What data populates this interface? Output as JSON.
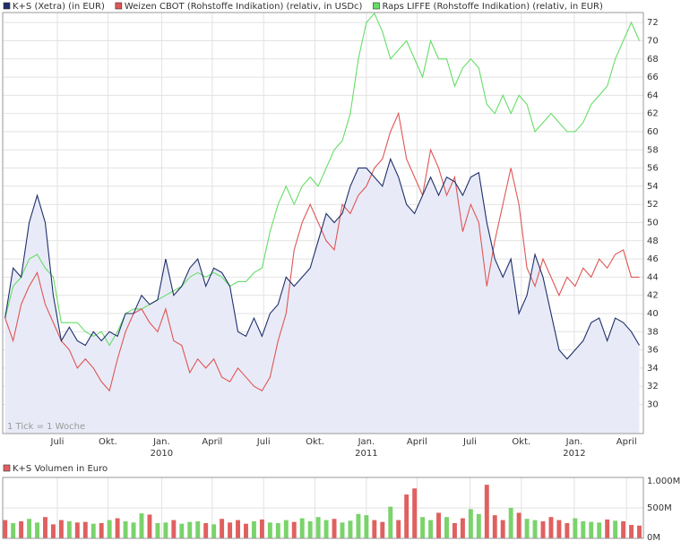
{
  "chart_data": [
    {
      "type": "line",
      "annotation": "1 Tick = 1 Woche",
      "xlim": [
        -0.3,
        79.5
      ],
      "xticks": [
        {
          "value": 6.5,
          "label": "Juli"
        },
        {
          "value": 12.8,
          "label": "Okt."
        },
        {
          "value": 19.5,
          "label": "Jan."
        },
        {
          "value": 25.8,
          "label": "April"
        },
        {
          "value": 32.2,
          "label": "Juli"
        },
        {
          "value": 38.6,
          "label": "Okt."
        },
        {
          "value": 45.0,
          "label": "Jan."
        },
        {
          "value": 51.3,
          "label": "April"
        },
        {
          "value": 57.9,
          "label": "Juli"
        },
        {
          "value": 64.3,
          "label": "Okt."
        },
        {
          "value": 70.9,
          "label": "Jan."
        },
        {
          "value": 77.4,
          "label": "April"
        }
      ],
      "year_labels": [
        {
          "value": 19.5,
          "label": "2010"
        },
        {
          "value": 45.0,
          "label": "2011"
        },
        {
          "value": 70.9,
          "label": "2012"
        }
      ],
      "ylim": [
        26.8,
        73.1
      ],
      "yticks": [
        30,
        32,
        34,
        36,
        38,
        40,
        42,
        44,
        46,
        48,
        50,
        52,
        54,
        56,
        58,
        60,
        62,
        64,
        66,
        68,
        70,
        72
      ],
      "grid": true,
      "series": [
        {
          "name": "K+S (Xetra) (in EUR)",
          "color": "#1f2f6b",
          "fill": "#e8ebf7",
          "values": [
            39.5,
            45,
            44,
            50,
            53,
            50,
            42,
            37,
            38.5,
            37,
            36.5,
            38,
            37,
            38,
            37.5,
            40,
            40,
            42,
            41,
            41.5,
            46,
            42,
            43,
            45,
            46,
            43,
            45,
            44.5,
            43,
            38,
            37.5,
            39.5,
            37.5,
            40,
            41,
            44,
            43,
            44,
            45,
            48,
            51,
            50,
            51,
            54,
            56,
            56,
            55,
            54,
            57,
            55,
            52,
            51,
            53,
            55,
            53,
            55,
            54.5,
            53,
            55,
            55.5,
            50,
            46,
            44,
            46,
            40,
            42,
            46.5,
            44,
            40,
            36,
            35,
            36,
            37,
            39,
            39.5,
            37,
            39.5,
            39,
            38,
            36.5
          ]
        },
        {
          "name": "Weizen CBOT (Rohstoffe Indikation) (relativ, in USDc)",
          "color": "#e05555",
          "values": [
            39.5,
            37,
            41,
            43,
            44.5,
            41,
            39,
            37,
            36,
            34,
            35,
            34,
            32.5,
            31.5,
            35,
            38,
            40,
            40.5,
            39,
            38,
            40.5,
            37,
            36.5,
            33.5,
            35,
            34,
            35,
            33,
            32.5,
            34,
            33,
            32,
            31.5,
            33,
            37,
            40,
            47,
            50,
            52,
            50,
            48,
            47,
            52,
            51,
            53,
            54,
            56,
            57,
            60,
            62,
            57,
            55,
            53,
            58,
            56,
            53,
            55,
            49,
            52,
            50,
            43,
            48,
            52,
            56,
            52,
            45,
            43,
            46,
            44,
            42,
            44,
            43,
            45,
            44,
            46,
            45,
            46.5,
            47,
            44,
            44
          ]
        },
        {
          "name": "Raps LIFFE (Rohstoffe Indikation) (relativ, in EUR)",
          "color": "#66dd66",
          "values": [
            39.5,
            43,
            44,
            46,
            46.5,
            45,
            44,
            39,
            39,
            39,
            38,
            37.5,
            38,
            36.5,
            38,
            40,
            40.5,
            40.5,
            41,
            41.5,
            42,
            42.5,
            43,
            44,
            44.5,
            44,
            44.5,
            44,
            43,
            43.5,
            43.5,
            44.5,
            45,
            49,
            52,
            54,
            52,
            54,
            55,
            54,
            56,
            58,
            59,
            62,
            68,
            72,
            73,
            71,
            68,
            69,
            70,
            68,
            66,
            70,
            68,
            68,
            65,
            67,
            68,
            67,
            63,
            62,
            64,
            62,
            64,
            63,
            60,
            61,
            62,
            61,
            60,
            60,
            61,
            63,
            64,
            65,
            68,
            70,
            72,
            70
          ]
        }
      ]
    },
    {
      "type": "bar",
      "title": "K+S Volumen in Euro",
      "color": "#e06060",
      "up_color": "#7ad36b",
      "xlim": [
        -0.3,
        79.5
      ],
      "ylim": [
        0,
        1000
      ],
      "yticks": [
        {
          "value": 0,
          "label": "0M"
        },
        {
          "value": 500,
          "label": "500M"
        },
        {
          "value": 1000,
          "label": "1.000M"
        }
      ],
      "values": [
        300,
        250,
        280,
        320,
        260,
        350,
        230,
        300,
        280,
        260,
        270,
        240,
        250,
        300,
        330,
        280,
        260,
        410,
        390,
        250,
        260,
        300,
        240,
        270,
        280,
        250,
        230,
        320,
        260,
        300,
        240,
        280,
        310,
        260,
        250,
        300,
        270,
        330,
        280,
        350,
        300,
        320,
        260,
        290,
        400,
        380,
        300,
        270,
        520,
        300,
        720,
        820,
        350,
        300,
        420,
        350,
        250,
        330,
        480,
        400,
        880,
        380,
        300,
        500,
        420,
        320,
        300,
        280,
        350,
        300,
        250,
        330,
        280,
        270,
        260,
        310,
        290,
        280,
        220,
        210
      ]
    }
  ]
}
